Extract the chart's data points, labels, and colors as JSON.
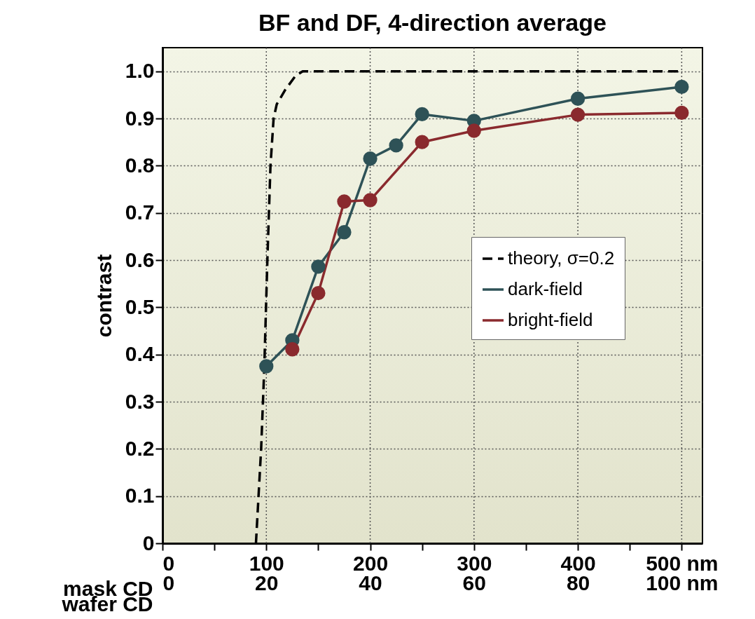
{
  "chart_data": {
    "type": "line",
    "title": "BF and DF, 4-direction average",
    "xlabel": "mask CD",
    "x2label": "wafer CD",
    "ylabel": "contrast",
    "xlim": [
      0,
      520
    ],
    "xticks": [
      0,
      {
        "value": 50,
        "label": null
      },
      100,
      {
        "value": 150,
        "label": null
      },
      200,
      {
        "value": 250,
        "label": null
      },
      300,
      {
        "value": 350,
        "label": null
      },
      400,
      {
        "value": 450,
        "label": null
      },
      {
        "value": 500,
        "label": "500 nm"
      }
    ],
    "x2lim": [
      0,
      104
    ],
    "x2ticks": [
      0,
      20,
      40,
      60,
      80,
      {
        "value": 100,
        "label": "100 nm"
      }
    ],
    "ylim": [
      0,
      1.05
    ],
    "yticks": [
      0,
      0.1,
      0.2,
      0.3,
      0.4,
      0.5,
      0.6,
      0.7,
      0.8,
      0.9,
      {
        "value": 1,
        "label": "1.0"
      }
    ],
    "grid": true,
    "legend": "right",
    "series": [
      {
        "name": "theory, σ=0.2",
        "color": "#000000",
        "line_style": "dashed",
        "marker": "none",
        "x": [
          90,
          95,
          98,
          101,
          104,
          107,
          110,
          118,
          128,
          135,
          500
        ],
        "values": [
          0,
          0.2,
          0.37,
          0.6,
          0.8,
          0.9,
          0.93,
          0.96,
          0.99,
          1.0,
          1.0
        ]
      },
      {
        "name": "dark-field",
        "color": "#2e5257",
        "line_style": "solid",
        "marker": "circle",
        "x": [
          100,
          125,
          150,
          175,
          200,
          225,
          250,
          300,
          400,
          500
        ],
        "values": [
          0.375,
          0.43,
          0.586,
          0.659,
          0.815,
          0.843,
          0.909,
          0.895,
          0.942,
          0.967
        ]
      },
      {
        "name": "bright-field",
        "color": "#8a2a2e",
        "line_style": "solid",
        "marker": "circle",
        "x": [
          125,
          150,
          175,
          200,
          250,
          300,
          400,
          500
        ],
        "values": [
          0.411,
          0.53,
          0.724,
          0.727,
          0.85,
          0.874,
          0.908,
          0.912
        ]
      }
    ]
  }
}
